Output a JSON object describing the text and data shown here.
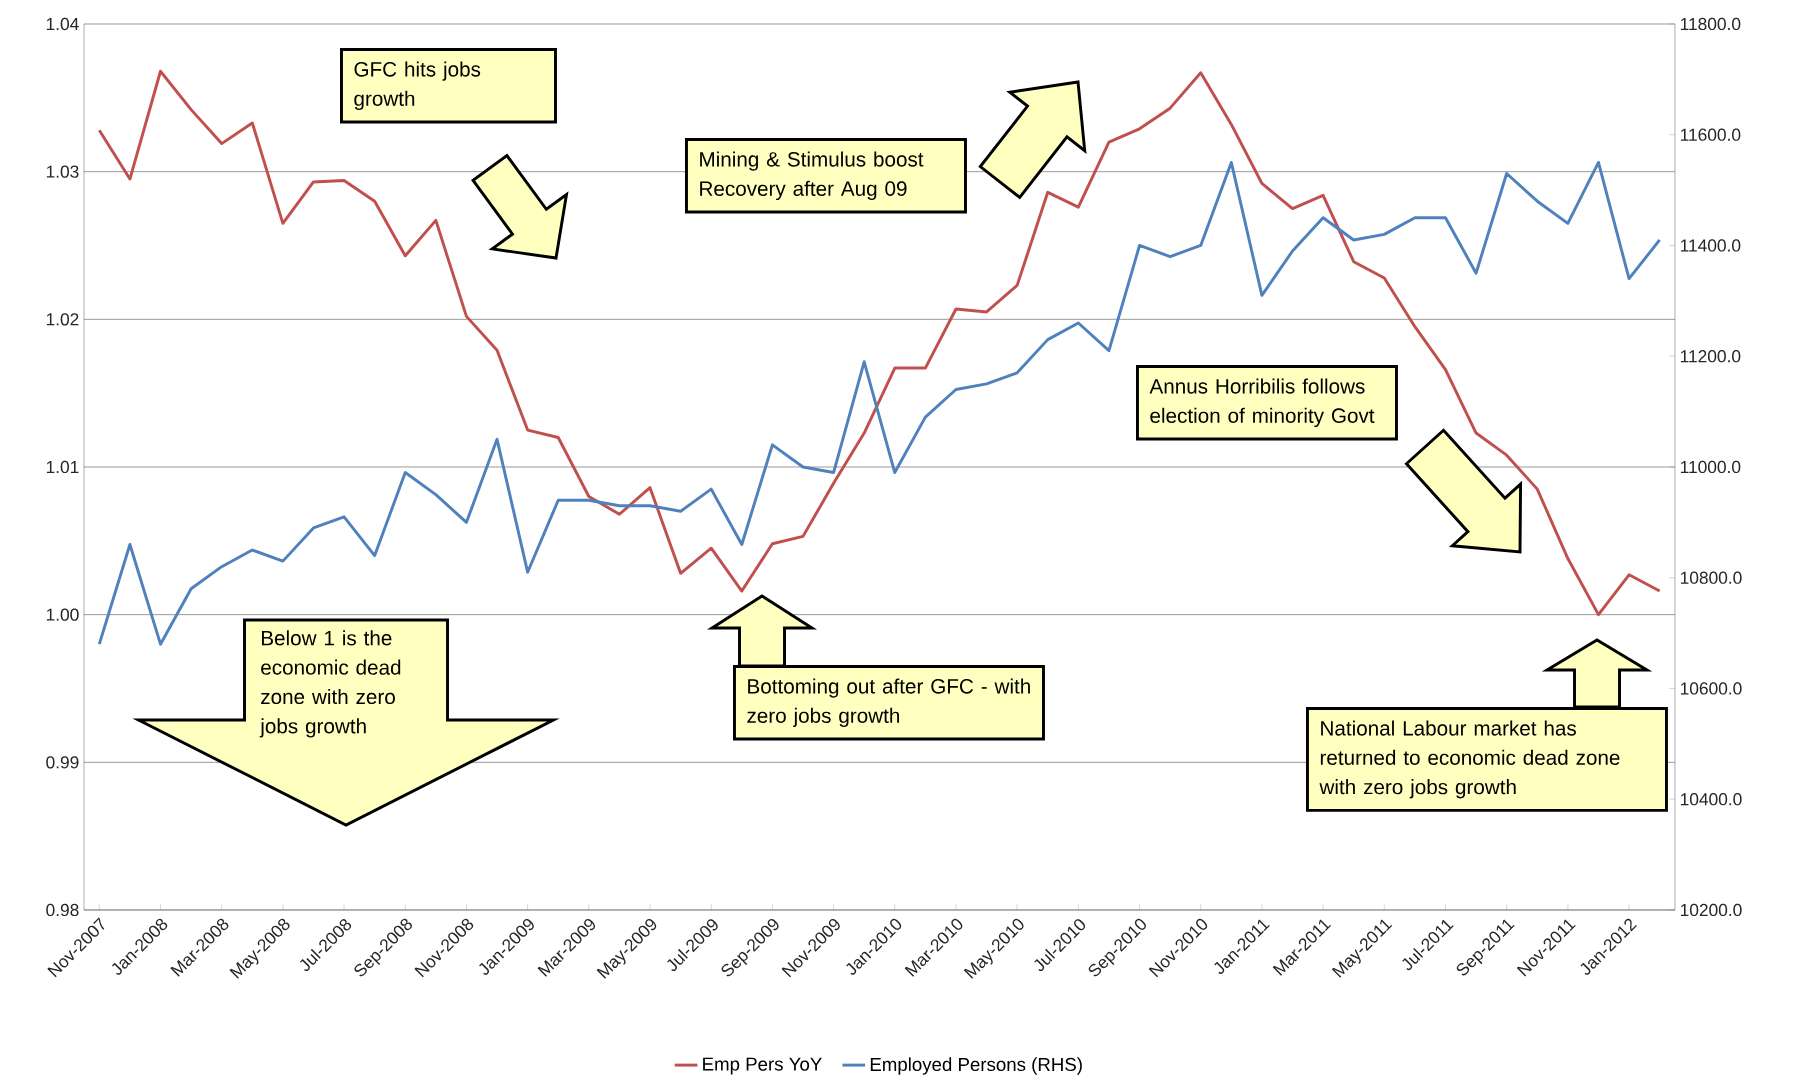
{
  "chart_data": {
    "type": "line",
    "categories": [
      "Nov-2007",
      null,
      "Jan-2008",
      null,
      "Mar-2008",
      null,
      "May-2008",
      null,
      "Jul-2008",
      null,
      "Sep-2008",
      null,
      "Nov-2008",
      null,
      "Jan-2009",
      null,
      "Mar-2009",
      null,
      "May-2009",
      null,
      "Jul-2009",
      null,
      "Sep-2009",
      null,
      "Nov-2009",
      null,
      "Jan-2010",
      null,
      "Mar-2010",
      null,
      "May-2010",
      null,
      "Jul-2010",
      null,
      "Sep-2010",
      null,
      "Nov-2010",
      null,
      "Jan-2011",
      null,
      "Mar-2011",
      null,
      "May-2011",
      null,
      "Jul-2011",
      null,
      "Sep-2011",
      null,
      "Nov-2011",
      null,
      "Jan-2012",
      null
    ],
    "series": [
      {
        "name": "Emp Pers YoY",
        "color": "#c0504d",
        "axis": "y",
        "values": [
          1.0328,
          1.0295,
          1.0368,
          1.0342,
          1.0319,
          1.0333,
          1.0265,
          1.0293,
          1.0294,
          1.028,
          1.0243,
          1.0267,
          1.0202,
          1.0179,
          1.0125,
          1.012,
          1.008,
          1.0068,
          1.0086,
          1.0028,
          1.0045,
          1.0016,
          1.0048,
          1.0053,
          1.0089,
          1.0123,
          1.0167,
          1.0167,
          1.0207,
          1.0205,
          1.0223,
          1.0286,
          1.0276,
          1.032,
          1.0329,
          1.0343,
          1.0367,
          1.0332,
          1.0292,
          1.0275,
          1.0284,
          1.0239,
          1.0228,
          1.0195,
          1.0166,
          1.0123,
          1.0108,
          1.0085,
          1.0038,
          1.0,
          1.0027,
          1.0016
        ]
      },
      {
        "name": "Employed  Persons (RHS)",
        "color": "#4f81bd",
        "axis": "y2",
        "values": [
          10680,
          10860,
          10680,
          10780,
          10820,
          10850,
          10830,
          10890,
          10910,
          10840,
          10990,
          10950,
          10900,
          11050,
          10810,
          10940,
          10940,
          10930,
          10930,
          10920,
          10960,
          10860,
          11040,
          11000,
          10990,
          11190,
          10990,
          11090,
          11140,
          11150,
          11170,
          11230,
          11260,
          11210,
          11400,
          11380,
          11400,
          11550,
          11310,
          11390,
          11450,
          11410,
          11420,
          11450,
          11450,
          11350,
          11530,
          11480,
          11440,
          11550,
          11340,
          11410
        ]
      }
    ],
    "ylim": [
      0.98,
      1.04
    ],
    "yticks": [
      0.98,
      0.99,
      {
        "value": 1.0,
        "label": "1.00"
      },
      1.01,
      1.02,
      1.03,
      1.04
    ],
    "y2lim": [
      10200,
      11800
    ],
    "y2ticks": [
      {
        "value": 10200,
        "label": "10200.0"
      },
      {
        "value": 10400,
        "label": "10400.0"
      },
      {
        "value": 10600,
        "label": "10600.0"
      },
      {
        "value": 10800,
        "label": "10800.0"
      },
      {
        "value": 11000,
        "label": "11000.0"
      },
      {
        "value": 11200,
        "label": "11200.0"
      },
      {
        "value": 11400,
        "label": "11400.0"
      },
      {
        "value": 11600,
        "label": "11600.0"
      },
      {
        "value": 11800,
        "label": "11800.0"
      }
    ],
    "grid": "y",
    "legend": "bottom",
    "annotations": [
      "GFC hits jobs growth",
      "Mining & Stimulus boost Recovery after Aug 09",
      "Bottoming out after GFC - with zero jobs growth",
      "Below 1 is the economic dead zone with zero jobs growth",
      "Annus  Horribilis follows election of minority Govt",
      "National Labour market has returned to economic dead zone with zero jobs growth"
    ]
  }
}
